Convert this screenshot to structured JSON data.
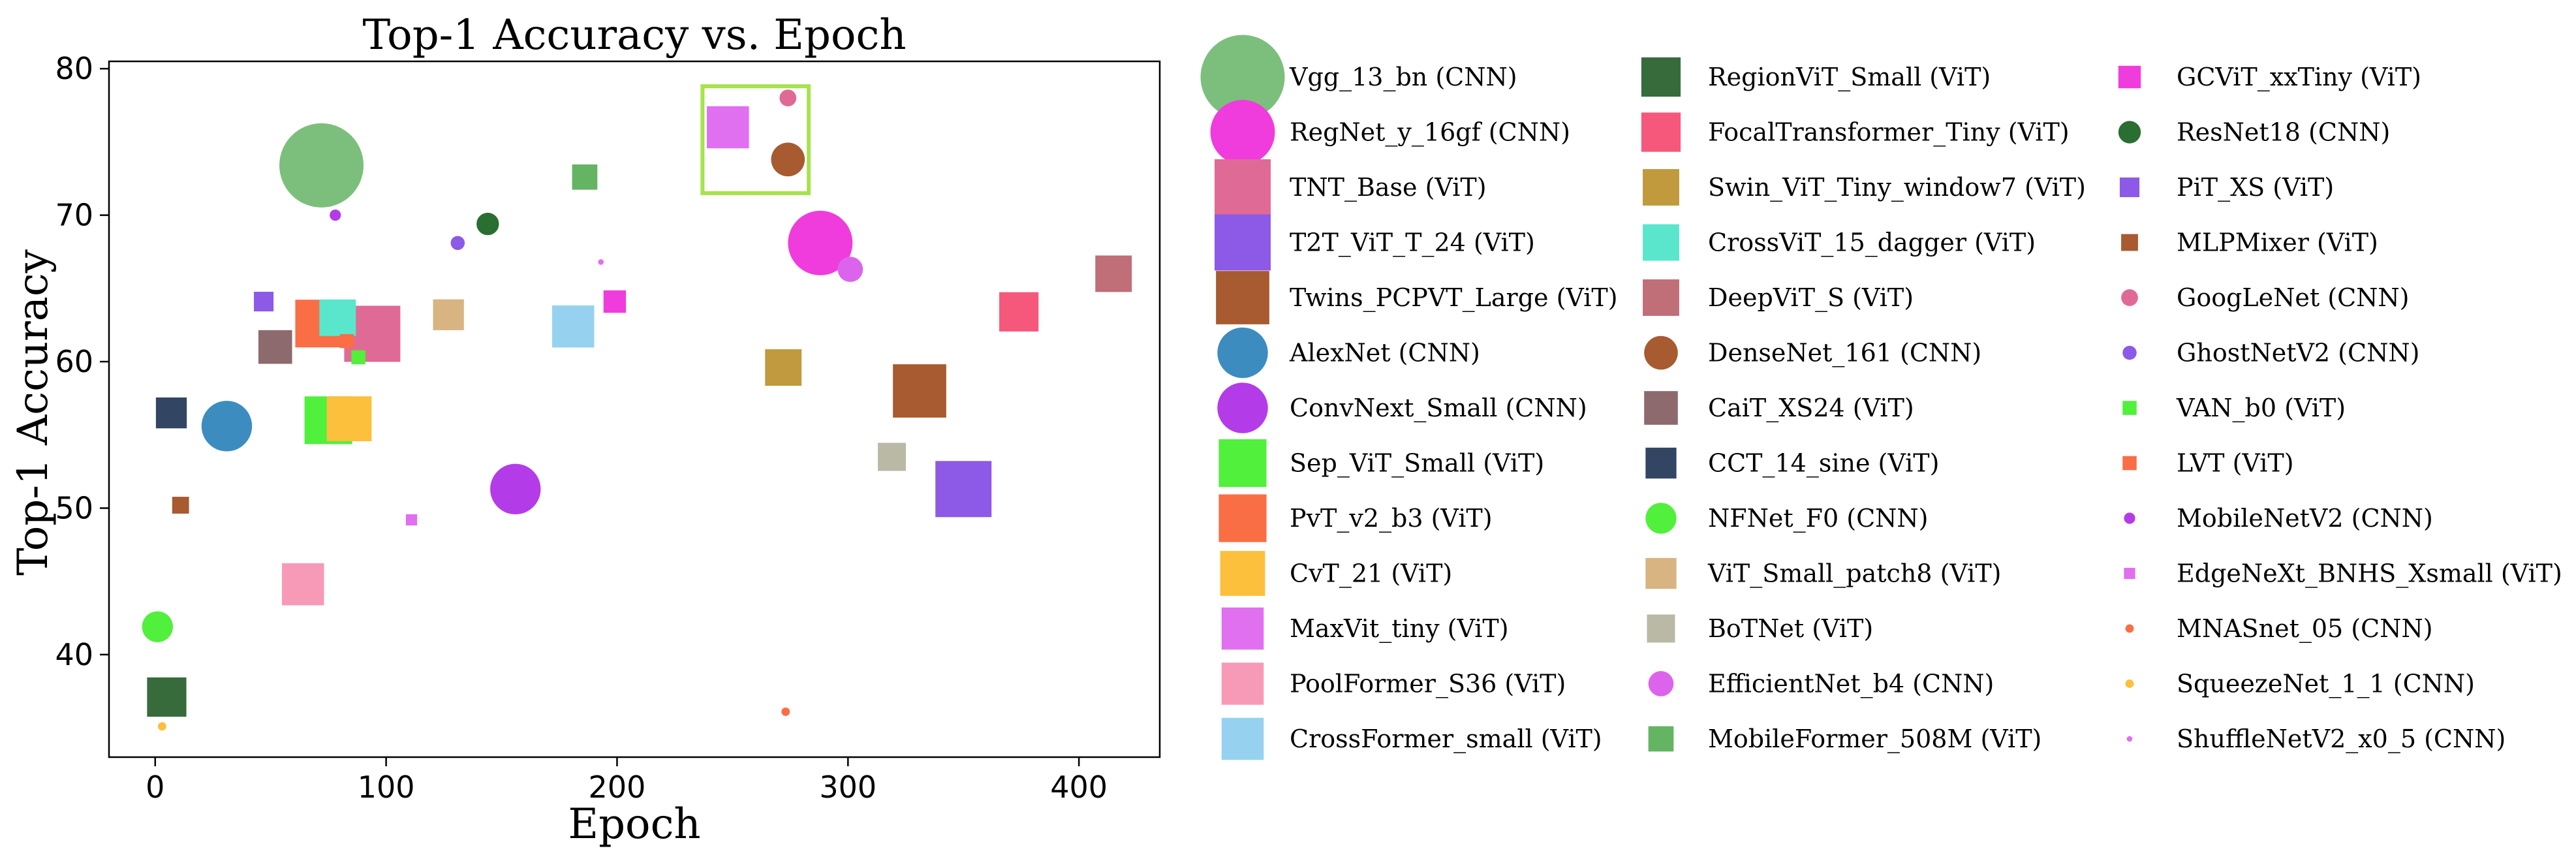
{
  "chart_data": {
    "type": "scatter",
    "title": "Top-1 Accuracy vs. Epoch",
    "xlabel": "Epoch",
    "ylabel": "Top-1 Accuracy",
    "xlim": [
      -20,
      435
    ],
    "ylim": [
      33,
      80.5
    ],
    "xticks": [
      0,
      100,
      200,
      300,
      400
    ],
    "yticks": [
      40,
      50,
      60,
      70,
      80
    ],
    "grid": false,
    "legend_position": "outside-right",
    "legend_columns": 3,
    "highlight_box": {
      "x_range": [
        237,
        283
      ],
      "y_range": [
        71.5,
        78.8
      ],
      "color": "#a6e34c"
    },
    "series": [
      {
        "name": "Vgg_13_bn (CNN)",
        "marker": "circle",
        "color": "#7cbf7c",
        "size": 15,
        "x": 72,
        "y": 73.4
      },
      {
        "name": "RegNet_y_16gf (CNN)",
        "marker": "circle",
        "color": "#f03cdc",
        "size": 11.5,
        "x": 288,
        "y": 68.1
      },
      {
        "name": "TNT_Base (ViT)",
        "marker": "square",
        "color": "#e06a96",
        "size": 10,
        "x": 94,
        "y": 61.9
      },
      {
        "name": "T2T_ViT_T_24 (ViT)",
        "marker": "square",
        "color": "#8c5ae6",
        "size": 10,
        "x": 350,
        "y": 51.3
      },
      {
        "name": "Twins_PCPVT_Large (ViT)",
        "marker": "square",
        "color": "#a85a30",
        "size": 9.5,
        "x": 331,
        "y": 58.0
      },
      {
        "name": "AlexNet (CNN)",
        "marker": "circle",
        "color": "#3c8cc0",
        "size": 9,
        "x": 31,
        "y": 55.6
      },
      {
        "name": "ConvNext_Small (CNN)",
        "marker": "circle",
        "color": "#b43ce8",
        "size": 9,
        "x": 156,
        "y": 51.3
      },
      {
        "name": "Sep_ViT_Small (ViT)",
        "marker": "square",
        "color": "#50f03c",
        "size": 8.5,
        "x": 75,
        "y": 56.0
      },
      {
        "name": "PvT_v2_b3 (ViT)",
        "marker": "square",
        "color": "#fa6e46",
        "size": 8.5,
        "x": 71,
        "y": 62.6
      },
      {
        "name": "CvT_21 (ViT)",
        "marker": "square",
        "color": "#fcc03c",
        "size": 8,
        "x": 84,
        "y": 56.1
      },
      {
        "name": "MaxVit_tiny (ViT)",
        "marker": "square",
        "color": "#e070f0",
        "size": 7.5,
        "x": 248,
        "y": 76.0
      },
      {
        "name": "PoolFormer_S36 (ViT)",
        "marker": "square",
        "color": "#f79ab8",
        "size": 7.5,
        "x": 64,
        "y": 44.8
      },
      {
        "name": "CrossFormer_small (ViT)",
        "marker": "square",
        "color": "#96d2f0",
        "size": 7.5,
        "x": 181,
        "y": 62.4
      },
      {
        "name": "RegionViT_Small (ViT)",
        "marker": "square",
        "color": "#376b3b",
        "size": 7,
        "x": 5,
        "y": 37.1
      },
      {
        "name": "FocalTransformer_Tiny (ViT)",
        "marker": "square",
        "color": "#f5587a",
        "size": 7,
        "x": 374,
        "y": 63.4
      },
      {
        "name": "Swin_ViT_Tiny_window7 (ViT)",
        "marker": "square",
        "color": "#c09a3c",
        "size": 6.5,
        "x": 272,
        "y": 59.6
      },
      {
        "name": "CrossViT_15_dagger (ViT)",
        "marker": "square",
        "color": "#5ae6cc",
        "size": 6.5,
        "x": 79,
        "y": 63.0
      },
      {
        "name": "DeepViT_S (ViT)",
        "marker": "square",
        "color": "#c06e78",
        "size": 6.5,
        "x": 415,
        "y": 66.0
      },
      {
        "name": "DenseNet_161 (CNN)",
        "marker": "circle",
        "color": "#a85a30",
        "size": 6,
        "x": 274,
        "y": 73.8
      },
      {
        "name": "CaiT_XS24 (ViT)",
        "marker": "square",
        "color": "#8c6a6e",
        "size": 6,
        "x": 52,
        "y": 61.0
      },
      {
        "name": "CCT_14_sine (ViT)",
        "marker": "square",
        "color": "#324664",
        "size": 5.5,
        "x": 7,
        "y": 56.5
      },
      {
        "name": "NFNet_F0 (CNN)",
        "marker": "circle",
        "color": "#50f03c",
        "size": 5.5,
        "x": 1,
        "y": 41.9
      },
      {
        "name": "ViT_Small_patch8 (ViT)",
        "marker": "square",
        "color": "#d7b482",
        "size": 5.5,
        "x": 127,
        "y": 63.2
      },
      {
        "name": "BoTNet (ViT)",
        "marker": "square",
        "color": "#b9b9a6",
        "size": 5,
        "x": 319,
        "y": 53.5
      },
      {
        "name": "EfficientNet_b4 (CNN)",
        "marker": "circle",
        "color": "#dc64ec",
        "size": 4.5,
        "x": 301,
        "y": 66.3
      },
      {
        "name": "MobileFormer_508M (ViT)",
        "marker": "square",
        "color": "#64b464",
        "size": 4.5,
        "x": 186,
        "y": 72.6
      },
      {
        "name": "GCViT_xxTiny (ViT)",
        "marker": "square",
        "color": "#f03cdc",
        "size": 4,
        "x": 199,
        "y": 64.1
      },
      {
        "name": "ResNet18 (CNN)",
        "marker": "circle",
        "color": "#2a6e32",
        "size": 4,
        "x": 144,
        "y": 69.4
      },
      {
        "name": "PiT_XS (ViT)",
        "marker": "square",
        "color": "#8c5ae6",
        "size": 3.5,
        "x": 47,
        "y": 64.1
      },
      {
        "name": "MLPMixer (ViT)",
        "marker": "square",
        "color": "#a85a30",
        "size": 3,
        "x": 11,
        "y": 50.2
      },
      {
        "name": "GoogLeNet (CNN)",
        "marker": "circle",
        "color": "#e06a96",
        "size": 3,
        "x": 274,
        "y": 78.0
      },
      {
        "name": "GhostNetV2 (CNN)",
        "marker": "circle",
        "color": "#8c5ae6",
        "size": 2.5,
        "x": 131,
        "y": 68.1
      },
      {
        "name": "VAN_b0 (ViT)",
        "marker": "square",
        "color": "#50f03c",
        "size": 2.5,
        "x": 88,
        "y": 60.3
      },
      {
        "name": "LVT (ViT)",
        "marker": "square",
        "color": "#fa6e46",
        "size": 2.5,
        "x": 83,
        "y": 61.4
      },
      {
        "name": "MobileNetV2 (CNN)",
        "marker": "circle",
        "color": "#b43ce8",
        "size": 2,
        "x": 78,
        "y": 70.0
      },
      {
        "name": "EdgeNeXt_BNHS_Xsmall (ViT)",
        "marker": "square",
        "color": "#e070f0",
        "size": 2,
        "x": 111,
        "y": 49.2
      },
      {
        "name": "MNASnet_05 (CNN)",
        "marker": "circle",
        "color": "#fa6e46",
        "size": 1.5,
        "x": 273,
        "y": 36.1
      },
      {
        "name": "SqueezeNet_1_1 (CNN)",
        "marker": "circle",
        "color": "#fcc03c",
        "size": 1.5,
        "x": 3,
        "y": 35.1
      },
      {
        "name": "ShuffleNetV2_x0_5 (CNN)",
        "marker": "circle",
        "color": "#e070f0",
        "size": 1,
        "x": 193,
        "y": 66.8
      }
    ]
  }
}
